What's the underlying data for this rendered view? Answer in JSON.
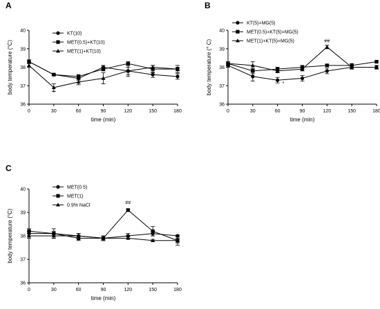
{
  "chart_data": [
    {
      "panel": "A",
      "type": "line",
      "xlabel": "time (min)",
      "ylabel": "body temperature (°C)",
      "x": [
        0,
        30,
        60,
        90,
        120,
        150,
        180
      ],
      "xticks": [
        "0",
        "30",
        "60",
        "90",
        "120",
        "150",
        "180"
      ],
      "yticks": [
        "36",
        "37",
        "38",
        "39",
        "40"
      ],
      "xlim": [
        0,
        180
      ],
      "ylim": [
        36,
        40
      ],
      "legend_position": "top-left",
      "series": [
        {
          "name": "KT(10)",
          "marker": "circle",
          "values": [
            38.3,
            37.6,
            37.4,
            38.0,
            37.8,
            37.6,
            37.5
          ],
          "errors": [
            0.1,
            0.05,
            0.1,
            0.1,
            0.2,
            0.15,
            0.15
          ]
        },
        {
          "name": "MET(0.5)+KT(10)",
          "marker": "square",
          "values": [
            38.3,
            37.6,
            37.5,
            37.9,
            38.2,
            37.9,
            37.9
          ],
          "errors": [
            0.1,
            0.05,
            0.1,
            0.1,
            0.1,
            0.2,
            0.2
          ]
        },
        {
          "name": "MET(1)+KT(10)",
          "marker": "triangle",
          "values": [
            38.1,
            36.9,
            37.2,
            37.4,
            37.8,
            38.0,
            37.9
          ],
          "errors": [
            0.1,
            0.2,
            0.15,
            0.3,
            0.3,
            0.1,
            0.1
          ]
        }
      ],
      "annotations": [
        {
          "text": "*",
          "x": 30,
          "y": 36.55
        }
      ]
    },
    {
      "panel": "B",
      "type": "line",
      "xlabel": "time (min)",
      "ylabel": "body temperature (° C)",
      "x": [
        0,
        30,
        60,
        90,
        120,
        150,
        180
      ],
      "xticks": [
        "0",
        "30",
        "60",
        "90",
        "120",
        "150",
        "180"
      ],
      "yticks": [
        "36",
        "37",
        "38",
        "39",
        "40"
      ],
      "xlim": [
        0,
        180
      ],
      "ylim": [
        36,
        40
      ],
      "legend_position": "top-left",
      "series": [
        {
          "name": "KT(5)+MG(5)",
          "marker": "circle",
          "values": [
            38.1,
            37.5,
            37.3,
            37.4,
            37.8,
            38.0,
            38.0
          ],
          "errors": [
            0.1,
            0.25,
            0.15,
            0.15,
            0.15,
            0.1,
            0.1
          ]
        },
        {
          "name": "MET(0.5)+KT(5)+MG(5)",
          "marker": "square",
          "values": [
            38.2,
            37.8,
            37.9,
            38.0,
            38.1,
            38.1,
            38.3
          ],
          "errors": [
            0.1,
            0.15,
            0.1,
            0.1,
            0.05,
            0.1,
            0.05
          ]
        },
        {
          "name": "MET(1)+KT(5)+MG(5)",
          "marker": "triangle",
          "values": [
            38.2,
            38.1,
            37.8,
            37.9,
            39.1,
            38.0,
            38.0
          ],
          "errors": [
            0.1,
            0.2,
            0.1,
            0.1,
            0.1,
            0.1,
            0.1
          ]
        }
      ],
      "annotations": [
        {
          "text": "*",
          "x": 67,
          "y": 37.05
        },
        {
          "text": "##",
          "x": 120,
          "y": 39.35
        }
      ]
    },
    {
      "panel": "C",
      "type": "line",
      "xlabel": "time (min)",
      "ylabel": "body temperature (°C)",
      "x": [
        0,
        30,
        60,
        90,
        120,
        150,
        180
      ],
      "xticks": [
        "0",
        "30",
        "60",
        "90",
        "120",
        "150",
        "180"
      ],
      "yticks": [
        "36",
        "37",
        "38",
        "39",
        "40"
      ],
      "xlim": [
        0,
        180
      ],
      "ylim": [
        36,
        40
      ],
      "legend_position": "top-left",
      "series": [
        {
          "name": "MET(0.5)",
          "marker": "circle",
          "values": [
            38.1,
            38.1,
            38.0,
            37.9,
            38.0,
            38.1,
            38.0
          ],
          "errors": [
            0.1,
            0.1,
            0.1,
            0.1,
            0.1,
            0.1,
            0.05
          ]
        },
        {
          "name": "MET(1)",
          "marker": "square",
          "values": [
            38.2,
            38.1,
            37.9,
            37.9,
            39.1,
            38.2,
            37.8
          ],
          "errors": [
            0.1,
            0.2,
            0.1,
            0.1,
            0.05,
            0.2,
            0.2
          ]
        },
        {
          "name": "0.9% NaCl",
          "marker": "triangle",
          "values": [
            38.0,
            38.0,
            38.0,
            37.9,
            37.9,
            37.8,
            37.8
          ],
          "errors": [
            0.1,
            0.1,
            0.1,
            0.1,
            0.05,
            0.05,
            0.1
          ]
        }
      ],
      "annotations": [
        {
          "text": "##",
          "x": 120,
          "y": 39.35
        }
      ]
    }
  ]
}
